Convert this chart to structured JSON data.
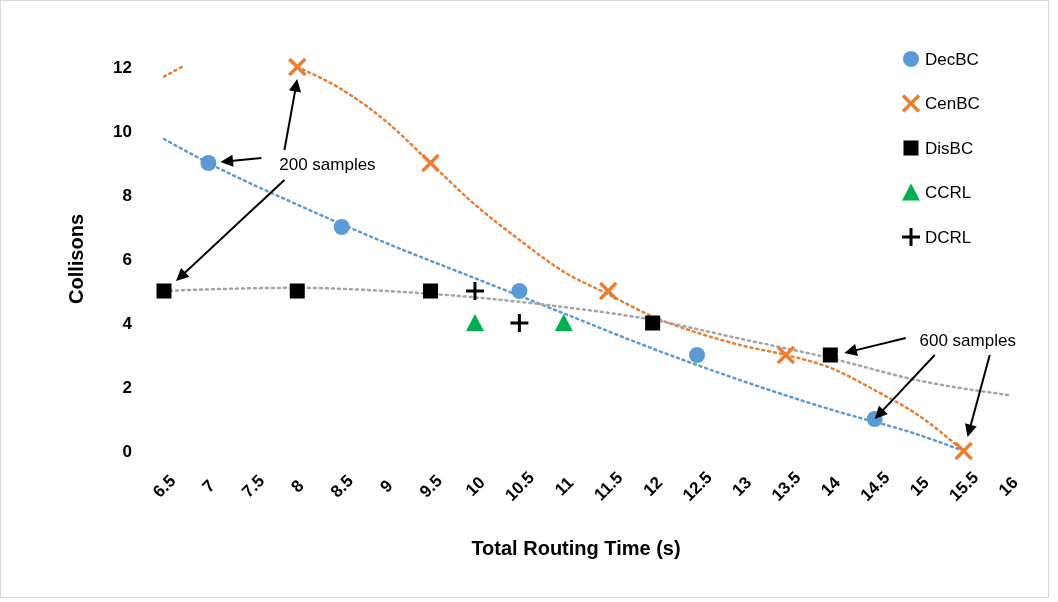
{
  "chart_data": {
    "type": "scatter",
    "xlabel": "Total Routing Time (s)",
    "ylabel": "Collisons",
    "xlim": [
      6.5,
      16
    ],
    "xticks": [
      6.5,
      7,
      7.5,
      8,
      8.5,
      9,
      9.5,
      10,
      10.5,
      11,
      11.5,
      12,
      12.5,
      13,
      13.5,
      14,
      14.5,
      15,
      15.5,
      16
    ],
    "ylim": [
      0,
      12
    ],
    "yticks": [
      0,
      2,
      4,
      6,
      8,
      10,
      12
    ],
    "grid": false,
    "legend": "top right",
    "annotations": [
      "200 samples",
      {
        "text": "600 samples",
        "x": 14.5,
        "y": 1
      }
    ],
    "series": [
      {
        "name": "DecBC",
        "type": "scatter",
        "marker": "circle",
        "color": "#5b9bd5",
        "x": [
          7,
          8.5,
          10.5,
          12.5,
          14.5
        ],
        "values": [
          9,
          7,
          5,
          3,
          1
        ]
      },
      {
        "name": "CenBC",
        "type": "scatter",
        "marker": "cross",
        "color": "#ed7d31",
        "x": [
          8,
          9.5,
          11.5,
          13.5,
          15.5
        ],
        "values": [
          12,
          9,
          5,
          3,
          0
        ]
      },
      {
        "name": "DisBC",
        "type": "scatter",
        "marker": "square",
        "color": "#000000",
        "x": [
          6.5,
          8,
          9.5,
          12,
          14
        ],
        "values": [
          5,
          5,
          5,
          4,
          3
        ]
      },
      {
        "name": "CCRL",
        "type": "scatter",
        "marker": "triangle",
        "color": "#00b050",
        "x": [
          10,
          11
        ],
        "values": [
          4,
          4
        ]
      },
      {
        "name": "DCRL",
        "type": "scatter",
        "marker": "plus",
        "color": "#000000",
        "x": [
          10,
          10.5
        ],
        "values": [
          5,
          4
        ]
      },
      {
        "type": "line",
        "line_style": "dotted",
        "marker": "none",
        "color": "#5b9bd5",
        "x": [
          6.5,
          7,
          8,
          9,
          10,
          11,
          12,
          13,
          14,
          15,
          15.5
        ],
        "values": [
          9.75,
          9.0,
          7.7,
          6.5,
          5.4,
          4.3,
          3.2,
          2.2,
          1.3,
          0.5,
          0
        ]
      },
      {
        "type": "line",
        "line_style": "dotted",
        "marker": "none",
        "color": "#ed7d31",
        "x": [
          6.5,
          6.7
        ],
        "values": [
          11.7,
          12
        ]
      },
      {
        "type": "line",
        "line_style": "dotted",
        "marker": "none",
        "color": "#ed7d31",
        "x": [
          8,
          8.5,
          9,
          9.5,
          10,
          10.5,
          11,
          11.5,
          12,
          12.5,
          13,
          13.5,
          14,
          14.5,
          15,
          15.5
        ],
        "values": [
          12,
          11.3,
          10.3,
          9,
          7.7,
          6.6,
          5.6,
          4.9,
          4.2,
          3.7,
          3.3,
          3,
          2.6,
          1.9,
          1.1,
          0
        ]
      },
      {
        "type": "line",
        "line_style": "dotted",
        "marker": "none",
        "color": "#a5a5a5",
        "x": [
          6.5,
          7,
          8,
          9,
          10,
          11,
          12,
          13,
          14,
          15,
          16
        ],
        "values": [
          5.0,
          5.05,
          5.1,
          5.0,
          4.8,
          4.5,
          4.1,
          3.5,
          2.9,
          2.2,
          1.75
        ]
      }
    ]
  }
}
